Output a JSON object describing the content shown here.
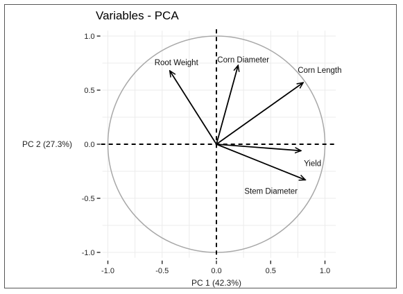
{
  "chart_data": {
    "type": "scatter",
    "subtype": "pca-variable-correlation-circle",
    "title": "Variables - PCA",
    "xlabel": "PC  1 (42.3%)",
    "ylabel": "PC 2 (27.3%)",
    "xlim": [
      -1.05,
      1.1
    ],
    "ylim": [
      -1.05,
      1.05
    ],
    "xticks": [
      -1.0,
      -0.5,
      0.0,
      0.5,
      1.0
    ],
    "xtick_labels": [
      "-1.0",
      "-0.5",
      "0.0",
      "0.5",
      "1.0"
    ],
    "yticks": [
      1.0,
      0.5,
      0.0,
      -0.5,
      -1.0
    ],
    "ytick_labels": [
      "1.0",
      "0.5",
      "0.0",
      "-0.5",
      "-1.0"
    ],
    "grid": true,
    "unit_circle": true,
    "colors": {
      "circle": "#a8a8a8",
      "grid": "#ebebeb",
      "arrow": "#000000"
    },
    "series": [
      {
        "name": "Root Weight",
        "x": -0.43,
        "y": 0.68
      },
      {
        "name": "Corn Diameter",
        "x": 0.2,
        "y": 0.73
      },
      {
        "name": "Corn Length",
        "x": 0.8,
        "y": 0.57
      },
      {
        "name": "Yield",
        "x": 0.78,
        "y": -0.06
      },
      {
        "name": "Stem Diameter",
        "x": 0.82,
        "y": -0.33
      }
    ]
  }
}
